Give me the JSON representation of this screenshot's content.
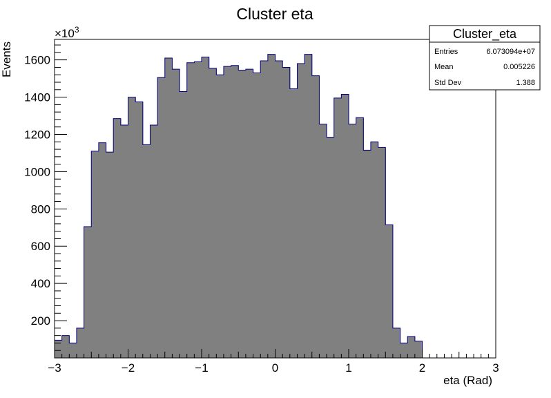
{
  "chart_data": {
    "type": "bar",
    "title": "Cluster eta",
    "xlabel": "eta (Rad)",
    "ylabel": "Events",
    "y_multiplier_label": "×10",
    "y_multiplier_exponent": "3",
    "xlim": [
      -3,
      3
    ],
    "ylim": [
      0,
      1710
    ],
    "x_ticks": [
      -3,
      -2,
      -1,
      0,
      1,
      2,
      3
    ],
    "x_tick_labels": [
      "−3",
      "−2",
      "−1",
      "0",
      "1",
      "2",
      "3"
    ],
    "y_ticks": [
      200,
      400,
      600,
      800,
      1000,
      1200,
      1400,
      1600
    ],
    "y_tick_labels": [
      "200",
      "400",
      "600",
      "800",
      "1000",
      "1200",
      "1400",
      "1600"
    ],
    "bin_edges_start": -3,
    "bin_width": 0.1,
    "values": [
      95,
      120,
      80,
      160,
      705,
      1110,
      1155,
      1105,
      1285,
      1250,
      1400,
      1375,
      1145,
      1250,
      1505,
      1610,
      1550,
      1430,
      1585,
      1590,
      1615,
      1555,
      1520,
      1565,
      1570,
      1545,
      1550,
      1530,
      1595,
      1630,
      1595,
      1560,
      1445,
      1580,
      1630,
      1515,
      1255,
      1185,
      1395,
      1415,
      1255,
      1290,
      1115,
      1160,
      1130,
      715,
      160,
      80,
      115,
      90
    ],
    "fill_color": "#808080",
    "line_color": "#000080",
    "grid": false,
    "legend": "none",
    "stats_box": {
      "title": "Cluster_eta",
      "rows": [
        {
          "label": "Entries",
          "value": "6.073094e+07"
        },
        {
          "label": "Mean",
          "value": "0.005226"
        },
        {
          "label": "Std Dev",
          "value": "1.388"
        }
      ]
    }
  }
}
